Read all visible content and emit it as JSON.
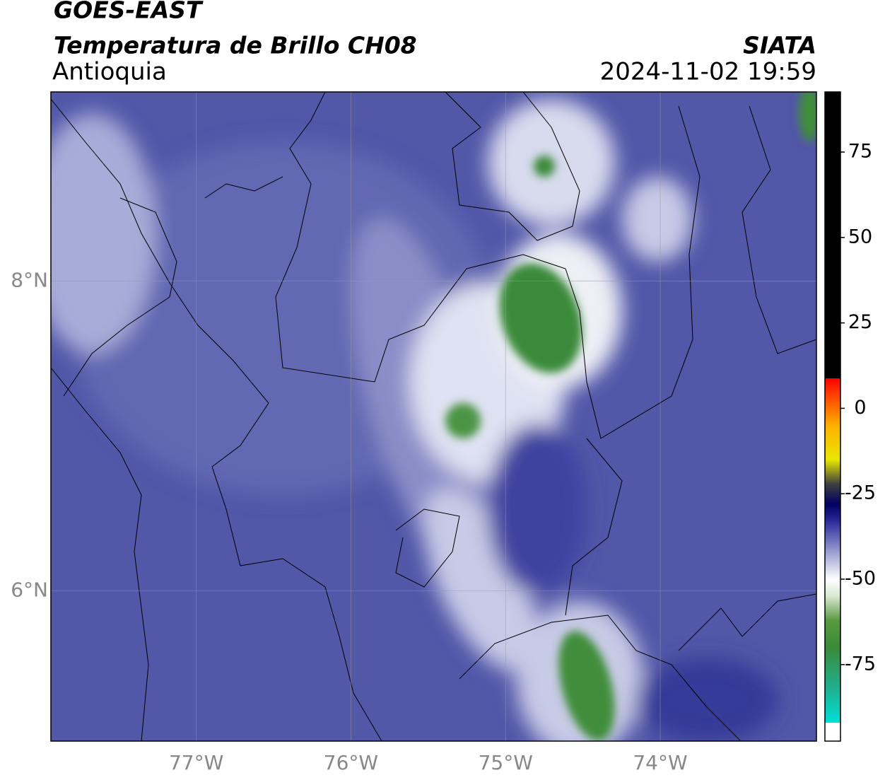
{
  "header": {
    "title": "GOES-EAST",
    "subtitle": "Temperatura de Brillo CH08",
    "region": "Antioquia",
    "source": "SIATA",
    "datetime": "2024-11-02 19:59"
  },
  "map": {
    "xlim": [
      -77.94,
      -72.99
    ],
    "ylim": [
      5.03,
      9.22
    ],
    "xticks": [
      {
        "value": -77,
        "label": "77°W"
      },
      {
        "value": -76,
        "label": "76°W"
      },
      {
        "value": -75,
        "label": "75°W"
      },
      {
        "value": -74,
        "label": "74°W"
      }
    ],
    "yticks": [
      {
        "value": 6,
        "label": "6°N"
      },
      {
        "value": 8,
        "label": "8°N"
      }
    ],
    "grid": true
  },
  "colorbar": {
    "lim": [
      -97.4,
      92.6
    ],
    "ticks": [
      75,
      50,
      25,
      0,
      -25,
      -50,
      -75
    ],
    "stops": [
      {
        "value": -97.4,
        "color": "#ffffff"
      },
      {
        "value": -92,
        "color": "#ffffff"
      },
      {
        "value": -91.9,
        "color": "#00e0d8"
      },
      {
        "value": -82,
        "color": "#20b090"
      },
      {
        "value": -70,
        "color": "#3a8a3a"
      },
      {
        "value": -62,
        "color": "#5a9a40"
      },
      {
        "value": -55,
        "color": "#d8e8d0"
      },
      {
        "value": -50,
        "color": "#ffffff"
      },
      {
        "value": -42,
        "color": "#9a9ed0"
      },
      {
        "value": -33,
        "color": "#2a2a9a"
      },
      {
        "value": -28,
        "color": "#000060"
      },
      {
        "value": -22,
        "color": "#404040"
      },
      {
        "value": -15,
        "color": "#e8e800"
      },
      {
        "value": -5,
        "color": "#ffb000"
      },
      {
        "value": 4,
        "color": "#ff4000"
      },
      {
        "value": 8.8,
        "color": "#ff0000"
      },
      {
        "value": 8.9,
        "color": "#000000"
      },
      {
        "value": 92.6,
        "color": "#000000"
      }
    ]
  }
}
